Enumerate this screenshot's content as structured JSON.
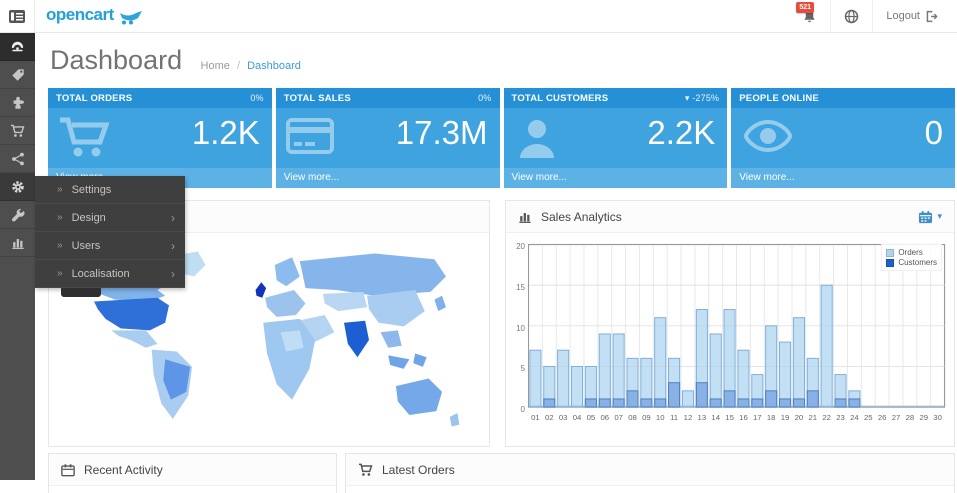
{
  "brand": {
    "name": "opencart",
    "color": "#23A0D8"
  },
  "header": {
    "notifications_count": "521",
    "logout_label": "Logout"
  },
  "sidebar": {
    "icons": [
      "dashboard-speedometer",
      "catalog-tag",
      "extensions-puzzle",
      "sales-cart",
      "marketing-share",
      "system-gear",
      "tools-wrench",
      "reports-chart"
    ]
  },
  "system_menu": {
    "caret": "»",
    "arrow": "›",
    "items": [
      {
        "label": "Settings",
        "has_children": false
      },
      {
        "label": "Design",
        "has_children": true
      },
      {
        "label": "Users",
        "has_children": true
      },
      {
        "label": "Localisation",
        "has_children": true
      }
    ]
  },
  "page": {
    "title": "Dashboard",
    "breadcrumb_home": "Home",
    "breadcrumb_sep": "/",
    "breadcrumb_current": "Dashboard"
  },
  "tiles": [
    {
      "title": "TOTAL ORDERS",
      "delta": "0%",
      "value": "1.2K",
      "icon": "shopping-cart",
      "footer": "View more..."
    },
    {
      "title": "TOTAL SALES",
      "delta": "0%",
      "value": "17.3M",
      "icon": "credit-card",
      "footer": "View more..."
    },
    {
      "title": "TOTAL CUSTOMERS",
      "delta": "▾ -275%",
      "value": "2.2K",
      "icon": "user",
      "footer": "View more..."
    },
    {
      "title": "PEOPLE ONLINE",
      "delta": "",
      "value": "0",
      "icon": "eye",
      "footer": "View more..."
    }
  ],
  "panels": {
    "sales_analytics": {
      "title": "Sales Analytics"
    },
    "recent_activity": {
      "title": "Recent Activity"
    },
    "latest_orders": {
      "title": "Latest Orders"
    }
  },
  "chart_data": {
    "type": "bar",
    "title": "Sales Analytics",
    "categories": [
      "01",
      "02",
      "03",
      "04",
      "05",
      "06",
      "07",
      "08",
      "09",
      "10",
      "11",
      "12",
      "13",
      "14",
      "15",
      "16",
      "17",
      "18",
      "19",
      "20",
      "21",
      "22",
      "23",
      "24",
      "25",
      "26",
      "27",
      "28",
      "29",
      "30"
    ],
    "series": [
      {
        "name": "Orders",
        "color": "#AED4F0",
        "stroke": "#7BAEDC",
        "values": [
          7,
          5,
          7,
          5,
          5,
          9,
          9,
          6,
          6,
          11,
          6,
          2,
          12,
          9,
          12,
          7,
          4,
          10,
          8,
          11,
          6,
          15,
          4,
          2,
          0,
          0,
          0,
          0,
          0,
          0
        ]
      },
      {
        "name": "Customers",
        "color": "#1E5FC8",
        "stroke": "#4a7fc0",
        "values": [
          0,
          1,
          0,
          0,
          1,
          1,
          1,
          2,
          1,
          1,
          3,
          0,
          3,
          1,
          2,
          1,
          1,
          2,
          1,
          1,
          2,
          0,
          1,
          1,
          0,
          0,
          0,
          0,
          0,
          0
        ]
      }
    ],
    "xlabel": "",
    "ylabel": "",
    "ylim": [
      0,
      20
    ],
    "yticks": [
      0,
      5,
      10,
      15,
      20
    ],
    "grid": true,
    "legend_position": "top-right"
  },
  "colors": {
    "tile_header": "#2590D5",
    "tile_body": "#3EA3DF",
    "tile_footer": "#5CB2E4",
    "sidebar_bg": "#4E4E4E",
    "menu_bg": "#3F3F3F",
    "badge": "#E74C3C",
    "link": "#3C9CD7",
    "map_strong": "#2F6FD8",
    "map_dark": "#1233BB",
    "map_medium": "#6FA5E8",
    "map_light": "#A9CDF0",
    "map_pale": "#C7E0F6"
  }
}
